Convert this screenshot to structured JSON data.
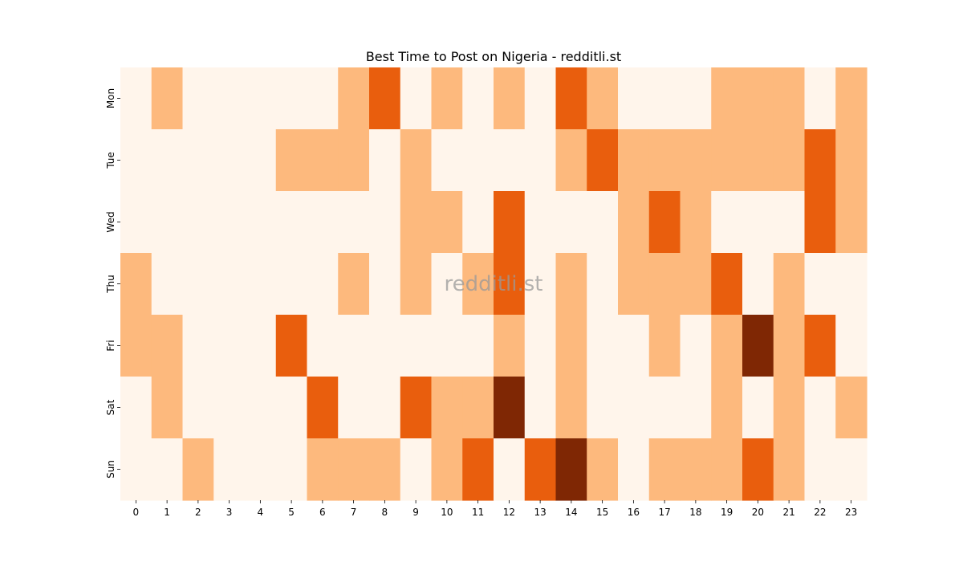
{
  "chart_data": {
    "type": "heatmap",
    "title": "Best Time to Post on Nigeria - redditli.st",
    "watermark": "redditli.st",
    "xlabel": "",
    "ylabel": "",
    "x": [
      0,
      1,
      2,
      3,
      4,
      5,
      6,
      7,
      8,
      9,
      10,
      11,
      12,
      13,
      14,
      15,
      16,
      17,
      18,
      19,
      20,
      21,
      22,
      23
    ],
    "y": [
      "Mon",
      "Tue",
      "Wed",
      "Thu",
      "Fri",
      "Sat",
      "Sun"
    ],
    "colorscale": [
      "#fff5eb",
      "#fdb97d",
      "#e95e0d",
      "#7f2704"
    ],
    "values": [
      [
        0,
        1,
        0,
        0,
        0,
        0,
        0,
        1,
        2,
        0,
        1,
        0,
        1,
        0,
        2,
        1,
        0,
        0,
        0,
        1,
        1,
        1,
        0,
        1
      ],
      [
        0,
        0,
        0,
        0,
        0,
        1,
        1,
        1,
        0,
        1,
        0,
        0,
        0,
        0,
        1,
        2,
        1,
        1,
        1,
        1,
        1,
        1,
        2,
        1
      ],
      [
        0,
        0,
        0,
        0,
        0,
        0,
        0,
        0,
        0,
        1,
        1,
        0,
        2,
        0,
        0,
        0,
        1,
        2,
        1,
        0,
        0,
        0,
        2,
        1
      ],
      [
        1,
        0,
        0,
        0,
        0,
        0,
        0,
        1,
        0,
        1,
        0,
        1,
        2,
        0,
        1,
        0,
        1,
        1,
        1,
        2,
        0,
        1,
        0,
        0
      ],
      [
        1,
        1,
        0,
        0,
        0,
        2,
        0,
        0,
        0,
        0,
        0,
        0,
        1,
        0,
        1,
        0,
        0,
        1,
        0,
        1,
        3,
        1,
        2,
        0
      ],
      [
        0,
        1,
        0,
        0,
        0,
        0,
        2,
        0,
        0,
        2,
        1,
        1,
        3,
        0,
        1,
        0,
        0,
        0,
        0,
        1,
        0,
        1,
        0,
        1
      ],
      [
        0,
        0,
        1,
        0,
        0,
        0,
        1,
        1,
        1,
        0,
        1,
        2,
        0,
        2,
        3,
        1,
        0,
        1,
        1,
        1,
        2,
        1,
        0,
        0
      ]
    ]
  }
}
